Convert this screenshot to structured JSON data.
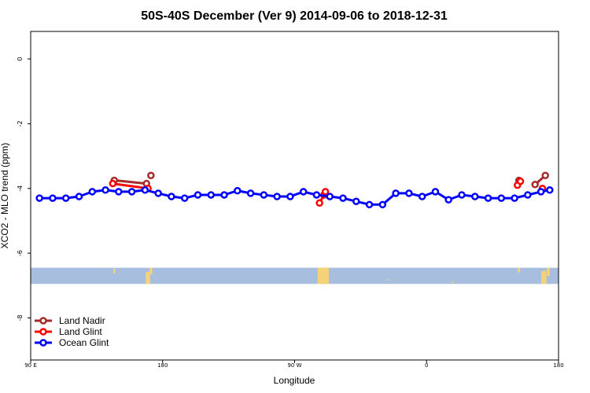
{
  "chart_data": {
    "type": "line",
    "title": "50S-40S December (Ver 9)   2014-09-06 to 2018-12-31",
    "xlabel": "Longitude",
    "ylabel": "XCO2 - MLO trend (ppm)",
    "xlim": [
      90,
      450
    ],
    "ylim": [
      -9.3,
      0.85
    ],
    "x_ticks": [
      {
        "value": 90,
        "label": "90 E"
      },
      {
        "value": 180,
        "label": "180"
      },
      {
        "value": 270,
        "label": "90 W"
      },
      {
        "value": 360,
        "label": "0"
      },
      {
        "value": 450,
        "label": "180"
      }
    ],
    "y_ticks": [
      {
        "value": 0,
        "label": "0"
      },
      {
        "value": -2,
        "label": "-2"
      },
      {
        "value": -4,
        "label": "-4"
      },
      {
        "value": -6,
        "label": "-6"
      },
      {
        "value": -8,
        "label": "-8"
      }
    ],
    "legend_position": "bottom-left",
    "grid": false,
    "land_mask_band": {
      "y_top": -6.45,
      "y_bottom": -6.95,
      "ocean_color": "#a7bedf",
      "land_color": "#f3d27a"
    },
    "series": [
      {
        "name": "Land Nadir",
        "color": "#a52a2a",
        "segments": [
          {
            "x": [
              147,
              169
            ],
            "y": [
              -3.75,
              -3.85
            ]
          },
          {
            "x": [
              172
            ],
            "y": [
              -3.6
            ]
          },
          {
            "x": [
              423
            ],
            "y": [
              -3.75
            ]
          },
          {
            "x": [
              434,
              441
            ],
            "y": [
              -3.88,
              -3.6
            ]
          }
        ]
      },
      {
        "name": "Land Glint",
        "color": "#ff0000",
        "segments": [
          {
            "x": [
              146,
              170
            ],
            "y": [
              -3.85,
              -4.0
            ]
          },
          {
            "x": [
              287,
              290
            ],
            "y": [
              -4.45,
              -4.2
            ]
          },
          {
            "x": [
              291
            ],
            "y": [
              -4.1
            ]
          },
          {
            "x": [
              422,
              424
            ],
            "y": [
              -3.9,
              -3.78
            ]
          },
          {
            "x": [
              439
            ],
            "y": [
              -4.0
            ]
          }
        ]
      },
      {
        "name": "Ocean Glint",
        "color": "#0000ff",
        "segments": [
          {
            "x": [
              96,
              105,
              114,
              123,
              132,
              141,
              150,
              159,
              168,
              177,
              186,
              195,
              204,
              213,
              222,
              231,
              240,
              249,
              258,
              267,
              276,
              285,
              294,
              303,
              312,
              321,
              330,
              339,
              348,
              357,
              366,
              375,
              384,
              393,
              402,
              411,
              420,
              429,
              438,
              444
            ],
            "y": [
              -4.3,
              -4.3,
              -4.3,
              -4.25,
              -4.1,
              -4.05,
              -4.1,
              -4.1,
              -4.05,
              -4.15,
              -4.25,
              -4.3,
              -4.2,
              -4.2,
              -4.2,
              -4.07,
              -4.15,
              -4.2,
              -4.25,
              -4.25,
              -4.1,
              -4.2,
              -4.25,
              -4.3,
              -4.4,
              -4.5,
              -4.5,
              -4.15,
              -4.15,
              -4.25,
              -4.1,
              -4.35,
              -4.2,
              -4.25,
              -4.3,
              -4.3,
              -4.3,
              -4.2,
              -4.1,
              -4.05
            ]
          }
        ]
      }
    ]
  }
}
